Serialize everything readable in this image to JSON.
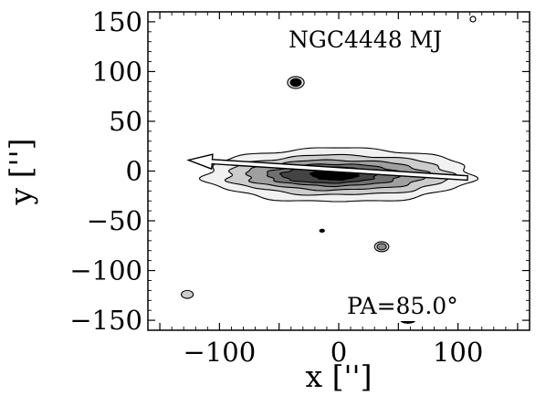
{
  "chart_data": {
    "type": "contour",
    "object_label": "NGC4448 M",
    "object_label_mark": "J",
    "position_angle_label": "PA=85.0°",
    "xlabel": "x ['']",
    "ylabel": "y ['']",
    "xlim": [
      -160,
      160
    ],
    "ylim": [
      -160,
      160
    ],
    "xticks": [
      -100,
      0,
      100
    ],
    "yticks": [
      150,
      100,
      50,
      0,
      -50,
      -100,
      -150
    ],
    "xtick_labels": [
      "−100",
      "0",
      "100"
    ],
    "ytick_labels": [
      "150",
      "100",
      "50",
      "0",
      "−50",
      "−100",
      "−150"
    ],
    "grid": false,
    "levels": [
      {
        "name": "level-1",
        "cx": 0,
        "cy": -4,
        "rx": 112,
        "ry": 27,
        "color": "#f1f1f1"
      },
      {
        "name": "level-2",
        "cx": 0,
        "cy": -4,
        "rx": 94,
        "ry": 20,
        "color": "#cccccc"
      },
      {
        "name": "level-3",
        "cx": -2,
        "cy": -4,
        "rx": 76,
        "ry": 15,
        "color": "#9f9f9f"
      },
      {
        "name": "level-4",
        "cx": -4,
        "cy": -4,
        "rx": 56,
        "ry": 11,
        "color": "#707070"
      },
      {
        "name": "level-5",
        "cx": -8,
        "cy": -4,
        "rx": 40,
        "ry": 8,
        "color": "#444444"
      },
      {
        "name": "level-6",
        "cx": -3,
        "cy": -3,
        "rx": 20,
        "ry": 6,
        "color": "#000000"
      }
    ],
    "sources": [
      {
        "name": "source-1",
        "x": -36,
        "y": 89,
        "rx": 7,
        "ry": 6,
        "color": "#000000",
        "inner": true
      },
      {
        "name": "source-2",
        "x": 36,
        "y": -76,
        "rx": 6,
        "ry": 5,
        "color": "#888888",
        "inner": true
      },
      {
        "name": "source-3",
        "x": -127,
        "y": -124,
        "rx": 5,
        "ry": 4,
        "color": "#cccccc",
        "inner": false
      },
      {
        "name": "source-4",
        "x": 58,
        "y": -150,
        "rx": 6,
        "ry": 3,
        "color": "#000000",
        "inner": false
      },
      {
        "name": "source-5",
        "x": -14,
        "y": -60,
        "rx": 2,
        "ry": 1.5,
        "color": "#000000",
        "inner": false
      }
    ],
    "pa_arrow": {
      "from": [
        108,
        -7
      ],
      "to": [
        -126,
        11
      ]
    }
  }
}
